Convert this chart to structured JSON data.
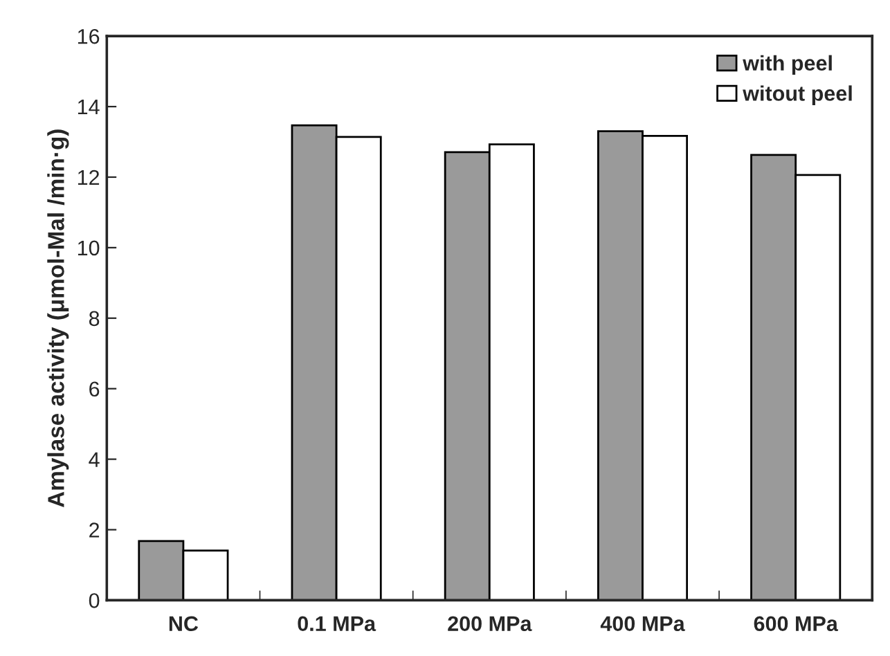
{
  "chart_data": {
    "type": "bar",
    "ylabel": "Amylase activity (μmol-Mal /min·g)",
    "categories": [
      "NC",
      "0.1 MPa",
      "200 MPa",
      "400 MPa",
      "600 MPa"
    ],
    "series": [
      {
        "name": "with peel",
        "color": "#9a9a9a",
        "values": [
          1.68,
          13.47,
          12.71,
          13.3,
          12.63
        ]
      },
      {
        "name": "witout peel",
        "color": "#ffffff",
        "values": [
          1.41,
          13.14,
          12.93,
          13.17,
          12.06
        ]
      }
    ],
    "ylim": [
      0,
      16
    ],
    "yticks": [
      0,
      2,
      4,
      6,
      8,
      10,
      12,
      14,
      16
    ],
    "legend": "top right",
    "grid": false
  }
}
